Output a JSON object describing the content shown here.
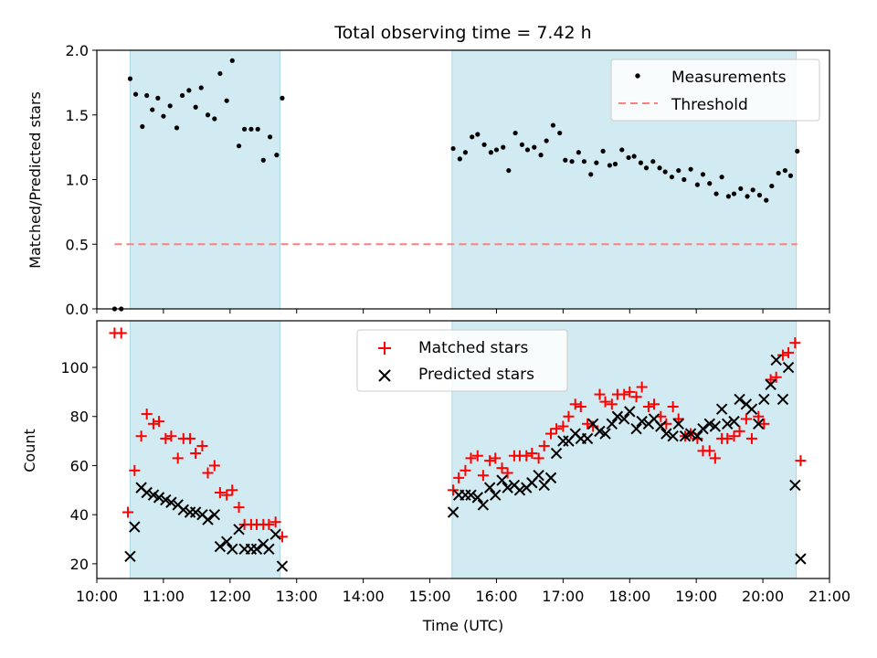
{
  "chart_data": [
    {
      "type": "scatter",
      "title": "Total observing time = 7.42 h",
      "ylabel": "Matched/Predicted stars",
      "xlabel": "",
      "xlim": [
        "10:00",
        "21:00"
      ],
      "ylim": [
        0,
        2.0
      ],
      "yticks": [
        0.0,
        0.5,
        1.0,
        1.5,
        2.0
      ],
      "ytick_labels": [
        "0.0",
        "0.5",
        "1.0",
        "1.5",
        "2.0"
      ],
      "shaded_intervals": [
        [
          "10:30",
          "12:45"
        ],
        [
          "15:20",
          "20:30"
        ]
      ],
      "shade_color": "#add8e6",
      "legend_position": "upper right",
      "series": [
        {
          "name": "Measurements",
          "kind": "scatter",
          "color": "#000000",
          "x": [
            "10:16",
            "10:22",
            "10:30",
            "10:35",
            "10:41",
            "10:45",
            "10:50",
            "10:55",
            "11:00",
            "11:06",
            "11:12",
            "11:17",
            "11:23",
            "11:29",
            "11:34",
            "11:40",
            "11:46",
            "11:51",
            "11:57",
            "12:02",
            "12:08",
            "12:13",
            "12:19",
            "12:25",
            "12:30",
            "12:36",
            "12:42",
            "12:47",
            "15:21",
            "15:27",
            "15:32",
            "15:38",
            "15:43",
            "15:49",
            "15:55",
            "16:00",
            "16:06",
            "16:11",
            "16:17",
            "16:23",
            "16:28",
            "16:34",
            "16:40",
            "16:45",
            "16:51",
            "16:57",
            "17:02",
            "17:08",
            "17:14",
            "17:19",
            "17:25",
            "17:30",
            "17:36",
            "17:42",
            "17:47",
            "17:53",
            "17:59",
            "18:04",
            "18:10",
            "18:15",
            "18:21",
            "18:27",
            "18:32",
            "18:38",
            "18:44",
            "18:49",
            "18:55",
            "19:01",
            "19:06",
            "19:12",
            "19:18",
            "19:23",
            "19:29",
            "19:34",
            "19:40",
            "19:46",
            "19:51",
            "19:57",
            "20:03",
            "20:08",
            "20:14",
            "20:20",
            "20:25",
            "20:31"
          ],
          "y": [
            0.0,
            0.0,
            1.78,
            1.66,
            1.41,
            1.65,
            1.54,
            1.63,
            1.49,
            1.57,
            1.4,
            1.65,
            1.69,
            1.56,
            1.71,
            1.5,
            1.47,
            1.82,
            1.61,
            1.92,
            1.26,
            1.39,
            1.39,
            1.39,
            1.15,
            1.33,
            1.19,
            1.63,
            1.24,
            1.16,
            1.21,
            1.33,
            1.35,
            1.27,
            1.21,
            1.23,
            1.25,
            1.07,
            1.36,
            1.27,
            1.23,
            1.25,
            1.19,
            1.3,
            1.42,
            1.36,
            1.15,
            1.14,
            1.21,
            1.14,
            1.04,
            1.13,
            1.22,
            1.11,
            1.12,
            1.23,
            1.17,
            1.18,
            1.13,
            1.09,
            1.14,
            1.09,
            1.06,
            1.02,
            1.07,
            1.0,
            1.08,
            0.96,
            1.04,
            0.97,
            0.89,
            1.02,
            0.87,
            0.89,
            0.93,
            0.87,
            0.92,
            0.88,
            0.84,
            0.95,
            1.05,
            1.07,
            1.03,
            1.22
          ]
        },
        {
          "name": "Threshold",
          "kind": "hline",
          "style": "dashed",
          "color": "#ff7f7f",
          "y": 0.5,
          "x_range": [
            "10:16",
            "20:31"
          ]
        }
      ]
    },
    {
      "type": "scatter",
      "title": "",
      "ylabel": "Count",
      "xlabel": "Time (UTC)",
      "xlim": [
        "10:00",
        "21:00"
      ],
      "ylim": [
        14,
        119
      ],
      "yticks": [
        20,
        40,
        60,
        80,
        100
      ],
      "ytick_labels": [
        "20",
        "40",
        "60",
        "80",
        "100"
      ],
      "xticks": [
        "10:00",
        "11:00",
        "12:00",
        "13:00",
        "14:00",
        "15:00",
        "16:00",
        "17:00",
        "18:00",
        "19:00",
        "20:00",
        "21:00"
      ],
      "shaded_intervals": [
        [
          "10:30",
          "12:45"
        ],
        [
          "15:20",
          "20:30"
        ]
      ],
      "shade_color": "#add8e6",
      "legend_position": "upper center",
      "series": [
        {
          "name": "Matched stars",
          "marker": "+",
          "color": "#ff0000",
          "x": [
            "10:16",
            "10:22",
            "10:28",
            "10:34",
            "10:40",
            "10:45",
            "10:51",
            "10:56",
            "11:02",
            "11:07",
            "11:13",
            "11:18",
            "11:24",
            "11:29",
            "11:35",
            "11:40",
            "11:46",
            "11:51",
            "11:57",
            "12:02",
            "12:08",
            "12:13",
            "12:19",
            "12:24",
            "12:30",
            "12:35",
            "12:41",
            "12:47",
            "15:21",
            "15:26",
            "15:32",
            "15:37",
            "15:43",
            "15:48",
            "15:54",
            "15:59",
            "16:05",
            "16:10",
            "16:16",
            "16:21",
            "16:27",
            "16:32",
            "16:38",
            "16:43",
            "16:49",
            "16:54",
            "17:00",
            "17:05",
            "17:11",
            "17:16",
            "17:22",
            "17:27",
            "17:33",
            "17:38",
            "17:44",
            "17:49",
            "17:55",
            "18:00",
            "18:06",
            "18:11",
            "18:17",
            "18:22",
            "18:28",
            "18:33",
            "18:39",
            "18:44",
            "18:50",
            "18:55",
            "19:01",
            "19:06",
            "19:12",
            "19:17",
            "19:23",
            "19:28",
            "19:34",
            "19:39",
            "19:45",
            "19:50",
            "19:56",
            "20:01",
            "20:07",
            "20:12",
            "20:18",
            "20:23",
            "20:29",
            "20:34"
          ],
          "y": [
            114,
            114,
            41,
            58,
            72,
            81,
            77,
            78,
            71,
            72,
            63,
            71,
            71,
            65,
            68,
            57,
            60,
            49,
            48,
            50,
            43,
            36,
            36,
            36,
            36,
            36,
            37,
            31,
            50,
            55,
            58,
            63,
            64,
            56,
            62,
            63,
            59,
            57,
            64,
            64,
            64,
            65,
            63,
            68,
            73,
            75,
            76,
            80,
            85,
            84,
            77,
            76,
            89,
            86,
            85,
            89,
            89,
            90,
            88,
            92,
            84,
            85,
            80,
            77,
            84,
            79,
            72,
            73,
            71,
            66,
            66,
            63,
            71,
            71,
            72,
            74,
            79,
            71,
            80,
            77,
            95,
            96,
            105,
            106,
            110,
            62
          ]
        },
        {
          "name": "Predicted stars",
          "marker": "x",
          "color": "#000000",
          "x": [
            "10:30",
            "10:34",
            "10:40",
            "10:45",
            "10:51",
            "10:56",
            "11:02",
            "11:07",
            "11:13",
            "11:18",
            "11:24",
            "11:29",
            "11:35",
            "11:40",
            "11:46",
            "11:51",
            "11:57",
            "12:02",
            "12:08",
            "12:13",
            "12:19",
            "12:24",
            "12:30",
            "12:35",
            "12:41",
            "12:47",
            "15:21",
            "15:26",
            "15:32",
            "15:37",
            "15:43",
            "15:48",
            "15:54",
            "15:59",
            "16:05",
            "16:10",
            "16:16",
            "16:21",
            "16:27",
            "16:32",
            "16:38",
            "16:43",
            "16:49",
            "16:54",
            "17:00",
            "17:05",
            "17:11",
            "17:16",
            "17:22",
            "17:27",
            "17:33",
            "17:38",
            "17:44",
            "17:49",
            "17:55",
            "18:00",
            "18:06",
            "18:11",
            "18:17",
            "18:22",
            "18:28",
            "18:33",
            "18:39",
            "18:44",
            "18:50",
            "18:55",
            "19:01",
            "19:06",
            "19:12",
            "19:17",
            "19:23",
            "19:28",
            "19:34",
            "19:39",
            "19:45",
            "19:50",
            "19:56",
            "20:01",
            "20:07",
            "20:12",
            "20:18",
            "20:23",
            "20:29",
            "20:34"
          ],
          "y": [
            23,
            35,
            51,
            49,
            48,
            47,
            46,
            45,
            44,
            42,
            41,
            41,
            40,
            38,
            40,
            27,
            29,
            26,
            34,
            26,
            26,
            26,
            28,
            26,
            32,
            19,
            41,
            48,
            48,
            48,
            47,
            44,
            51,
            48,
            54,
            51,
            52,
            50,
            51,
            53,
            56,
            52,
            55,
            65,
            70,
            70,
            73,
            71,
            71,
            77,
            74,
            73,
            77,
            80,
            79,
            82,
            75,
            78,
            77,
            79,
            76,
            73,
            72,
            77,
            72,
            73,
            72,
            75,
            77,
            76,
            83,
            77,
            78,
            87,
            85,
            83,
            77,
            87,
            93,
            103,
            87,
            100,
            52,
            22
          ]
        }
      ]
    }
  ]
}
